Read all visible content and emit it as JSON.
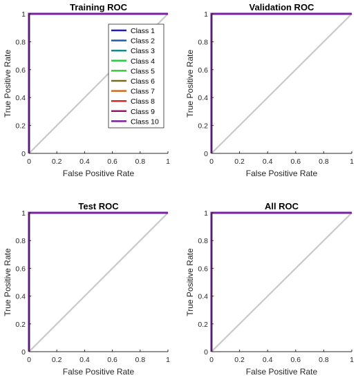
{
  "chart_data": [
    {
      "type": "line",
      "title": "Training ROC",
      "xlabel": "False Positive Rate",
      "ylabel": "True Positive Rate",
      "xlim": [
        0,
        1
      ],
      "ylim": [
        0,
        1
      ],
      "xticks": [
        "0",
        "0.2",
        "0.4",
        "0.6",
        "0.8",
        "1"
      ],
      "yticks": [
        "0",
        "0.2",
        "0.4",
        "0.6",
        "0.8",
        "1"
      ],
      "grid": false,
      "legend": "top-right",
      "reference_line": {
        "x": [
          0,
          1
        ],
        "y": [
          0,
          1
        ],
        "color": "#c8c8c8"
      },
      "series": [
        {
          "name": "Class 1",
          "color": "#1f1fb4",
          "x": [
            0,
            0,
            1
          ],
          "y": [
            0,
            1,
            1
          ]
        },
        {
          "name": "Class 2",
          "color": "#1a5fb4",
          "x": [
            0,
            0,
            1
          ],
          "y": [
            0,
            1,
            1
          ]
        },
        {
          "name": "Class 3",
          "color": "#168a8a",
          "x": [
            0,
            0,
            1
          ],
          "y": [
            0,
            1,
            1
          ]
        },
        {
          "name": "Class 4",
          "color": "#2ecc40",
          "x": [
            0,
            0,
            1
          ],
          "y": [
            0,
            1,
            1
          ]
        },
        {
          "name": "Class 5",
          "color": "#33cc33",
          "x": [
            0,
            0,
            1
          ],
          "y": [
            0,
            1,
            1
          ]
        },
        {
          "name": "Class 6",
          "color": "#7a6a1a",
          "x": [
            0,
            0,
            1
          ],
          "y": [
            0,
            1,
            1
          ]
        },
        {
          "name": "Class 7",
          "color": "#d2691e",
          "x": [
            0,
            0,
            1
          ],
          "y": [
            0,
            1,
            1
          ]
        },
        {
          "name": "Class 8",
          "color": "#d62728",
          "x": [
            0,
            0,
            1
          ],
          "y": [
            0,
            1,
            1
          ]
        },
        {
          "name": "Class 9",
          "color": "#a0146e",
          "x": [
            0,
            0,
            1
          ],
          "y": [
            0,
            1,
            1
          ]
        },
        {
          "name": "Class 10",
          "color": "#7a1fa2",
          "x": [
            0,
            0,
            1
          ],
          "y": [
            0,
            1,
            1
          ]
        }
      ]
    },
    {
      "type": "line",
      "title": "Validation ROC",
      "xlabel": "False Positive Rate",
      "ylabel": "True Positive Rate",
      "xlim": [
        0,
        1
      ],
      "ylim": [
        0,
        1
      ],
      "xticks": [
        "0",
        "0.2",
        "0.4",
        "0.6",
        "0.8",
        "1"
      ],
      "yticks": [
        "0",
        "0.2",
        "0.4",
        "0.6",
        "0.8",
        "1"
      ],
      "grid": false,
      "reference_line": {
        "x": [
          0,
          1
        ],
        "y": [
          0,
          1
        ],
        "color": "#c8c8c8"
      },
      "series": [
        {
          "color": "#7a1fa2",
          "x": [
            0,
            0,
            1
          ],
          "y": [
            0,
            1,
            1
          ]
        }
      ]
    },
    {
      "type": "line",
      "title": "Test ROC",
      "xlabel": "False Positive Rate",
      "ylabel": "True Positive Rate",
      "xlim": [
        0,
        1
      ],
      "ylim": [
        0,
        1
      ],
      "xticks": [
        "0",
        "0.2",
        "0.4",
        "0.6",
        "0.8",
        "1"
      ],
      "yticks": [
        "0",
        "0.2",
        "0.4",
        "0.6",
        "0.8",
        "1"
      ],
      "grid": false,
      "reference_line": {
        "x": [
          0,
          1
        ],
        "y": [
          0,
          1
        ],
        "color": "#c8c8c8"
      },
      "series": [
        {
          "color": "#7a1fa2",
          "x": [
            0,
            0,
            1
          ],
          "y": [
            0,
            1,
            1
          ]
        }
      ]
    },
    {
      "type": "line",
      "title": "All ROC",
      "xlabel": "False Positive Rate",
      "ylabel": "True Positive Rate",
      "xlim": [
        0,
        1
      ],
      "ylim": [
        0,
        1
      ],
      "xticks": [
        "0",
        "0.2",
        "0.4",
        "0.6",
        "0.8",
        "1"
      ],
      "yticks": [
        "0",
        "0.2",
        "0.4",
        "0.6",
        "0.8",
        "1"
      ],
      "grid": false,
      "reference_line": {
        "x": [
          0,
          1
        ],
        "y": [
          0,
          1
        ],
        "color": "#c8c8c8"
      },
      "series": [
        {
          "color": "#7a1fa2",
          "x": [
            0,
            0,
            1
          ],
          "y": [
            0,
            1,
            1
          ]
        }
      ]
    }
  ]
}
